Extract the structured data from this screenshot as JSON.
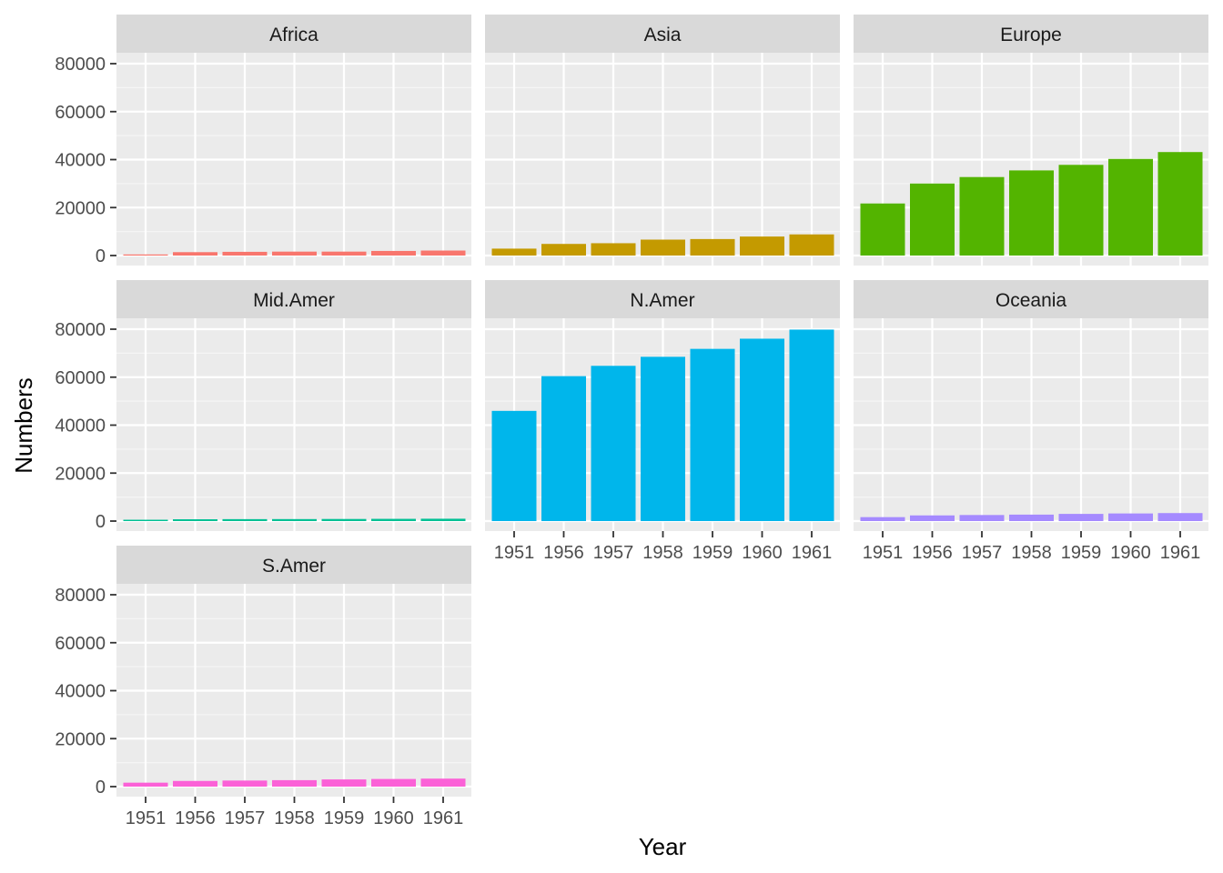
{
  "chart_data": {
    "type": "bar",
    "layout": "facet-wrap",
    "xlabel": "Year",
    "ylabel": "Numbers",
    "ylim": [
      0,
      90000
    ],
    "y_ticks": [
      0,
      20000,
      40000,
      60000,
      80000
    ],
    "categories": [
      "1951",
      "1956",
      "1957",
      "1958",
      "1959",
      "1960",
      "1961"
    ],
    "grid": true,
    "legend": "none",
    "series": [
      {
        "name": "Africa",
        "color": "#F8766D",
        "values": [
          89,
          1411,
          1546,
          1636,
          1637,
          1916,
          2078
        ]
      },
      {
        "name": "Asia",
        "color": "#C49A00",
        "values": [
          2876,
          4842,
          5136,
          6633,
          6872,
          7920,
          8811
        ]
      },
      {
        "name": "Europe",
        "color": "#53B400",
        "values": [
          21702,
          30020,
          32720,
          35489,
          37807,
          40270,
          43141
        ]
      },
      {
        "name": "Mid.Amer",
        "color": "#00C094",
        "values": [
          555,
          752,
          807,
          827,
          871,
          925,
          977
        ]
      },
      {
        "name": "N.Amer",
        "color": "#00B6EB",
        "values": [
          45939,
          60423,
          64721,
          68484,
          71799,
          76036,
          79831
        ]
      },
      {
        "name": "Oceania",
        "color": "#A58AFF",
        "values": [
          1646,
          2366,
          2526,
          2691,
          2995,
          3179,
          3334
        ]
      },
      {
        "name": "S.Amer",
        "color": "#FB61D7",
        "values": [
          1646,
          2366,
          2526,
          2691,
          2995,
          3179,
          3334
        ]
      }
    ]
  }
}
